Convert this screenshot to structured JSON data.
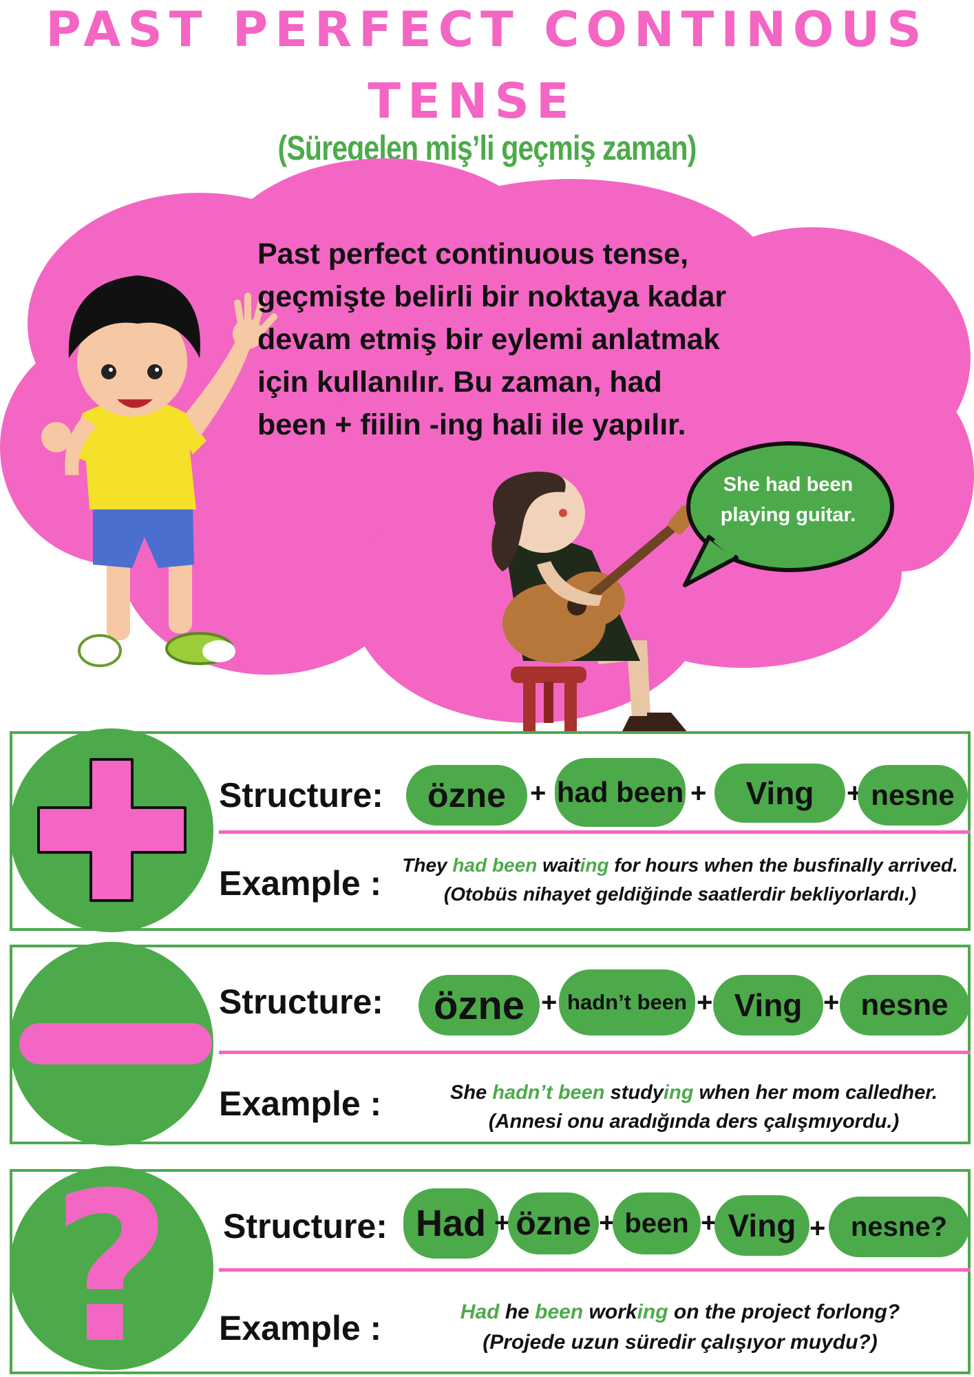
{
  "title": {
    "line1": "PAST PERFECT CONTINOUS",
    "line2": "TENSE"
  },
  "subtitle": "(Süregelen miş’li geçmiş zaman)",
  "intro": {
    "lines": [
      "Past perfect continuous tense,",
      "geçmişte belirli bir noktaya kadar",
      "devam etmiş bir eylemi anlatmak",
      "için kullanılır. Bu zaman, had",
      "been + fiilin -ing hali ile yapılır."
    ]
  },
  "speech_bubble": {
    "line1": "She had been",
    "line2": "playing guitar."
  },
  "colors": {
    "pink": "#f466c4",
    "green": "#4daa4b",
    "text": "#111111"
  },
  "positive": {
    "icon": "plus-icon",
    "structure_label": "Structure:",
    "pills": [
      "özne",
      "had been",
      "Ving",
      "nesne"
    ],
    "plus_sign": "+",
    "example_label": "Example :",
    "example": {
      "p1": "They ",
      "h1": "had been",
      "p2": " wait",
      "h2": "ing",
      "p3": " for hours when the busfinally arrived.",
      "translation": "(Otobüs nihayet geldiğinde saatlerdir bekliyorlardı.)"
    }
  },
  "negative": {
    "icon": "minus-icon",
    "structure_label": "Structure:",
    "pills": [
      "özne",
      "hadn’t been",
      "Ving",
      "nesne"
    ],
    "plus_sign": "+",
    "example_label": "Example :",
    "example": {
      "p1": "She ",
      "h1": "hadn’t been",
      "p2": " study",
      "h2": "ing",
      "p3": " when her mom calledher.",
      "translation": "(Annesi onu aradığında ders çalışmıyordu.)"
    }
  },
  "question": {
    "icon": "question-mark-icon",
    "icon_glyph": "?",
    "structure_label": "Structure:",
    "pills": [
      "Had",
      "özne",
      "been",
      "Ving",
      "nesne?"
    ],
    "plus_sign": "+",
    "example_label": "Example :",
    "example": {
      "h1": "Had",
      "p1": " he ",
      "h2": "been",
      "p2": " work",
      "h3": "ing",
      "p3": " on the project forlong?",
      "translation": "(Projede uzun süredir çalışıyor muydu?)"
    }
  }
}
